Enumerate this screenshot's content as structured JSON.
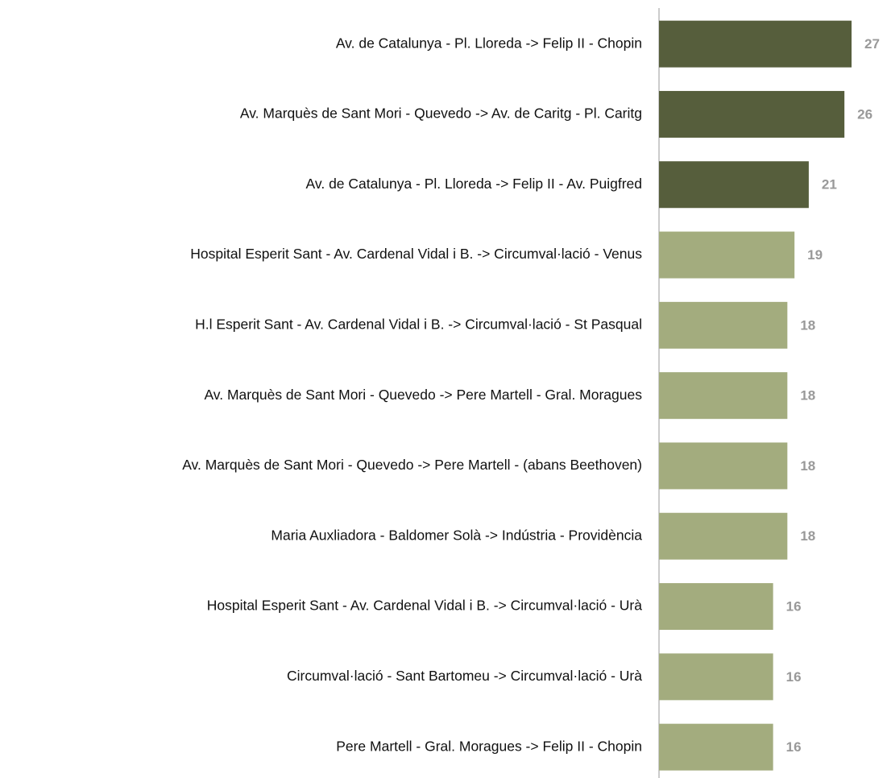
{
  "chart_data": {
    "type": "bar",
    "categories": [
      "Av. de Catalunya - Pl. Lloreda -> Felip II - Chopin",
      "Av. Marquès de Sant Mori - Quevedo -> Av. de Caritg - Pl. Caritg",
      "Av. de Catalunya - Pl. Lloreda -> Felip II - Av. Puigfred",
      "Hospital Esperit Sant - Av. Cardenal Vidal i B. -> Circumval·lació - Venus",
      "H.l Esperit Sant - Av. Cardenal Vidal i B. -> Circumval·lació - St Pasqual",
      "Av. Marquès de Sant Mori - Quevedo -> Pere Martell - Gral. Moragues",
      "Av. Marquès de Sant Mori - Quevedo -> Pere Martell - (abans Beethoven)",
      "Maria Auxliadora - Baldomer Solà -> Indústria - Providència",
      "Hospital Esperit Sant - Av. Cardenal Vidal i B. -> Circumval·lació - Urà",
      "Circumval·lació - Sant Bartomeu -> Circumval·lació - Urà",
      "Pere Martell - Gral. Moragues -> Felip II - Chopin"
    ],
    "values": [
      27,
      26,
      21,
      19,
      18,
      18,
      18,
      18,
      16,
      16,
      16
    ],
    "colors": [
      "#565e3c",
      "#565e3c",
      "#565e3c",
      "#a3ac7e",
      "#a3ac7e",
      "#a3ac7e",
      "#a3ac7e",
      "#a3ac7e",
      "#a3ac7e",
      "#a3ac7e",
      "#a3ac7e"
    ]
  }
}
